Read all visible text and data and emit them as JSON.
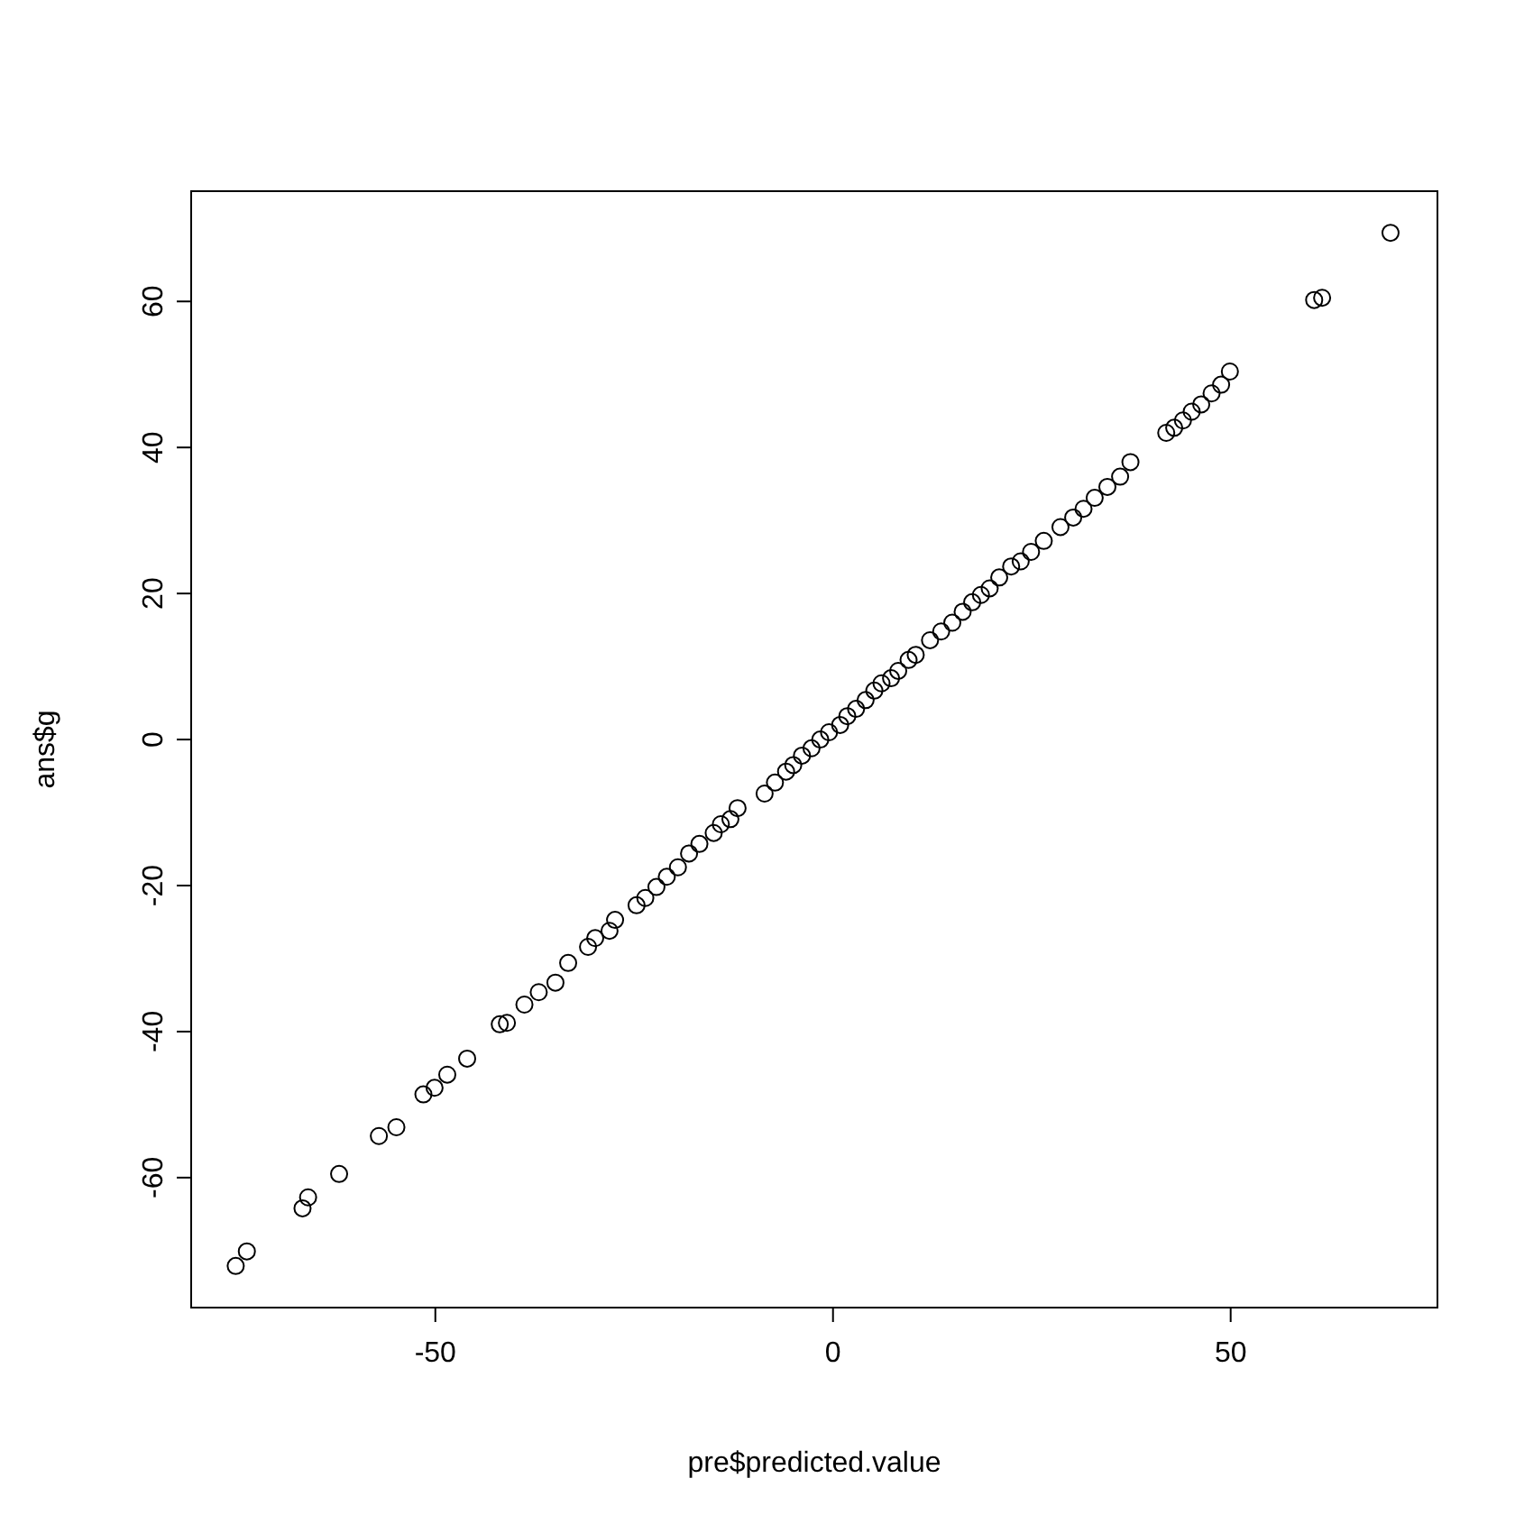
{
  "chart_data": {
    "type": "scatter",
    "xlabel": "pre$predicted.value",
    "ylabel": "ans$g",
    "xlim": [
      -80.7,
      76
    ],
    "ylim": [
      -77.8,
      75.1
    ],
    "xticks": [
      -50,
      0,
      50
    ],
    "yticks": [
      -60,
      -40,
      -20,
      0,
      20,
      40,
      60
    ],
    "grid": false,
    "marker": "circle",
    "series": [
      {
        "color": "#000000",
        "x": [
          -75.1,
          -73.7,
          -66.7,
          -66.0,
          -62.1,
          -57.1,
          -54.9,
          -51.5,
          -50.1,
          -48.5,
          -46.0,
          -41.9,
          -41.0,
          -38.8,
          -37.0,
          -34.9,
          -33.3,
          -30.8,
          -29.9,
          -28.1,
          -27.4,
          -24.7,
          -23.6,
          -22.2,
          -20.9,
          -19.5,
          -18.1,
          -16.8,
          -15.0,
          -14.1,
          -12.9,
          -12.0,
          -8.6,
          -7.3,
          -5.9,
          -5.0,
          -3.9,
          -2.7,
          -1.6,
          -0.5,
          0.9,
          1.8,
          2.9,
          4.1,
          5.2,
          6.1,
          7.3,
          8.2,
          9.5,
          10.4,
          12.2,
          13.6,
          15.0,
          16.3,
          17.5,
          18.6,
          19.7,
          20.9,
          22.4,
          23.6,
          24.9,
          26.5,
          28.6,
          30.2,
          31.5,
          32.9,
          34.5,
          36.1,
          37.4,
          41.9,
          42.9,
          44.0,
          45.1,
          46.3,
          47.6,
          48.8,
          49.9,
          60.5,
          61.5,
          70.1
        ],
        "values": [
          -72.1,
          -70.1,
          -64.2,
          -62.7,
          -59.5,
          -54.3,
          -53.1,
          -48.6,
          -47.7,
          -45.9,
          -43.7,
          -39.0,
          -38.8,
          -36.3,
          -34.6,
          -33.3,
          -30.6,
          -28.4,
          -27.2,
          -26.2,
          -24.7,
          -22.7,
          -21.7,
          -20.2,
          -18.8,
          -17.5,
          -15.6,
          -14.3,
          -12.8,
          -11.6,
          -10.9,
          -9.4,
          -7.4,
          -5.9,
          -4.4,
          -3.5,
          -2.2,
          -1.2,
          0,
          1.0,
          2.0,
          3.2,
          4.2,
          5.4,
          6.7,
          7.7,
          8.4,
          9.4,
          10.9,
          11.6,
          13.6,
          14.8,
          16.0,
          17.5,
          18.8,
          19.8,
          20.7,
          22.2,
          23.7,
          24.4,
          25.7,
          27.2,
          29.1,
          30.4,
          31.6,
          33.1,
          34.6,
          36.0,
          38.0,
          42.0,
          42.7,
          43.7,
          44.9,
          45.9,
          47.4,
          48.6,
          50.4,
          60.2,
          60.5,
          69.4
        ]
      }
    ]
  }
}
